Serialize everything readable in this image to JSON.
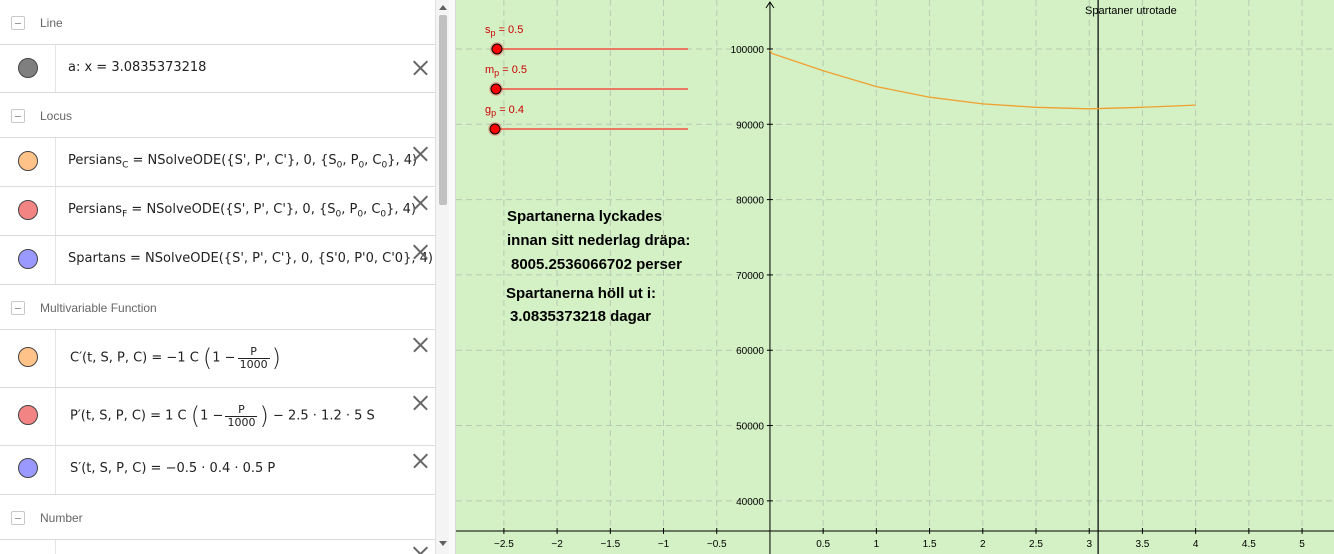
{
  "algebra": {
    "categories": {
      "line": "Line",
      "locus": "Locus",
      "multivariable": "Multivariable Function",
      "number": "Number"
    },
    "line_row": {
      "text": "a: x = 3.0835373218",
      "color": "#7f7f7f"
    },
    "locus_rows": [
      {
        "name": "Persians",
        "sub": "C",
        "rest": " = NSolveODE({S', P', C'}, 0, {S",
        "color": "#ffc38a"
      },
      {
        "name": "Persians",
        "sub": "F",
        "rest": " = NSolveODE({S', P', C'}, 0, {S",
        "color": "#f28484"
      },
      {
        "name": "Spartans",
        "rest": " = NSolveODE({S', P', C'}, 0, {S'0, P'0, C'0}, 4)",
        "color": "#9999ff"
      }
    ],
    "locus_tail": {
      "p": ", P",
      "c": ", C",
      "end": "}, 4)",
      "zero": "0"
    },
    "func_rows": [
      {
        "lhs": "C′(t, S, P, C)",
        "mid": " = −1 C ",
        "pre": "1 −",
        "num": "P",
        "den": "1000",
        "tail": "",
        "color": "#ffc38a"
      },
      {
        "lhs": "P′(t, S, P, C)",
        "mid": " = 1 C ",
        "pre": "1 −",
        "num": "P",
        "den": "1000",
        "tail": " − 2.5 · 1.2 · 5 S",
        "color": "#f28484"
      },
      {
        "lhs": "S′(t, S, P, C)",
        "mid": " = −0.5 · 0.4 · 0.5 P",
        "color": "#9999ff"
      }
    ]
  },
  "graphics": {
    "sliders": [
      {
        "name": "s",
        "sub": "p",
        "value_text": " = 0.5"
      },
      {
        "name": "m",
        "sub": "p",
        "value_text": " = 0.5"
      },
      {
        "name": "g",
        "sub": "p",
        "value_text": " = 0.4"
      }
    ],
    "texts": {
      "killed_line1": "Spartanerna lyckades",
      "killed_line2": "innan sitt nederlag dräpa:",
      "killed_line3": "8005.2536066702 perser",
      "held_line1": "Spartanerna höll ut i:",
      "held_line2": "3.0835373218 dagar"
    },
    "vertical_line_label": "Spartaner utrotade",
    "vertical_line_x": 3.0835373218,
    "colors": {
      "background": "#d4f1c5",
      "curve": "#f0a030",
      "slider": "#ff0000",
      "grid": "#b9c9b4"
    }
  },
  "chart_data": {
    "type": "line",
    "x_ticks": [
      "−2.5",
      "−2",
      "−1.5",
      "−1",
      "−0.5",
      "0.5",
      "1",
      "1.5",
      "2",
      "2.5",
      "3",
      "3.5",
      "4",
      "4.5",
      "5"
    ],
    "x_tick_values": [
      -2.5,
      -2,
      -1.5,
      -1,
      -0.5,
      0.5,
      1,
      1.5,
      2,
      2.5,
      3,
      3.5,
      4,
      4.5,
      5
    ],
    "y_ticks": [
      "40000",
      "50000",
      "60000",
      "70000",
      "80000",
      "90000",
      "100000"
    ],
    "y_tick_values": [
      40000,
      50000,
      60000,
      70000,
      80000,
      90000,
      100000
    ],
    "xlim": [
      -2.95,
      5.3
    ],
    "ylim": [
      36000,
      106500
    ],
    "grid": true,
    "series": [
      {
        "x": [
          0,
          0.02,
          0.25,
          0.5,
          1,
          1.5,
          2,
          2.5,
          3,
          3.5,
          4
        ],
        "y": [
          99800,
          99400,
          98300,
          97100,
          95000,
          93600,
          92700,
          92250,
          92050,
          92250,
          92550
        ]
      }
    ]
  }
}
